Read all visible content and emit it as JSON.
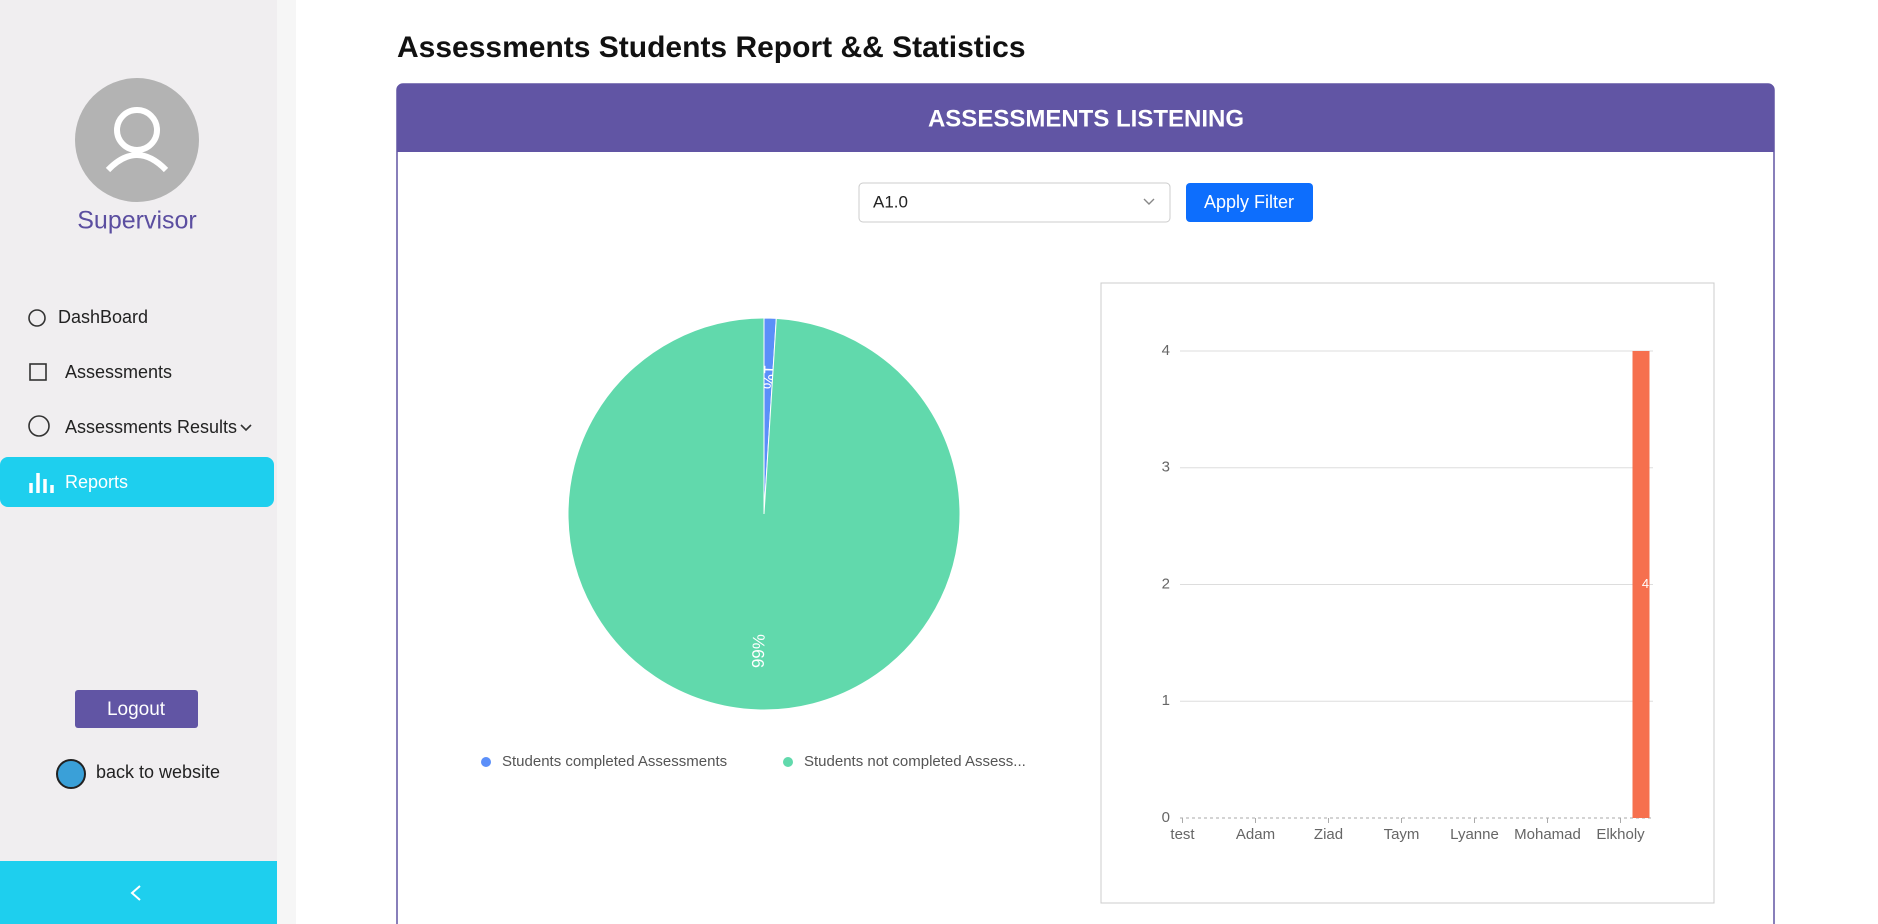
{
  "sidebar": {
    "user": "Supervisor",
    "nav": [
      "DashBoard",
      "Assessments",
      "Assessments Results",
      "Reports"
    ],
    "logout": "Logout",
    "back": "back to website"
  },
  "header": {
    "title": "Assessments Students Report && Statistics"
  },
  "card": {
    "title": "ASSESSMENTS LISTENING",
    "filter": "A1.0",
    "button": "Apply Filter"
  },
  "chart_data": [
    {
      "type": "pie",
      "categories": [
        "Students  completed  Assessments",
        "Students not completed  Assess..."
      ],
      "values": [
        1,
        99
      ],
      "value_labels": [
        "1%",
        "99%"
      ],
      "colors": [
        "#5b8ff9",
        "#61d9ac"
      ],
      "legend": "bottom"
    },
    {
      "type": "bar",
      "categories": [
        "test",
        "Adam",
        "Ziad",
        "Taym",
        "Lyanne",
        "Mohamad",
        "Elkholy"
      ],
      "values": [
        0,
        0,
        0,
        0,
        0,
        0,
        4
      ],
      "color": "#f6704e",
      "ylim": [
        0,
        4
      ],
      "yticks": [
        0,
        1,
        2,
        3,
        4
      ],
      "grid": true
    }
  ]
}
